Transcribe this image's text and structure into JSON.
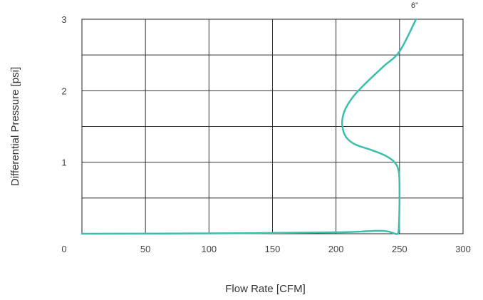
{
  "chart_data": {
    "type": "line",
    "xlabel": "Flow Rate [CFM]",
    "ylabel": "Differential Pressure [psi]",
    "xlim": [
      0,
      300
    ],
    "ylim": [
      0,
      3
    ],
    "x_ticks": [
      0,
      50,
      100,
      150,
      200,
      250,
      300
    ],
    "x_tick_labels": [
      "0",
      "50",
      "100",
      "150",
      "200",
      "250",
      "300"
    ],
    "y_ticks": [
      1,
      2,
      3
    ],
    "y_tick_labels": [
      "1",
      "2",
      "3"
    ],
    "grid": true,
    "series": [
      {
        "name": "6\"",
        "color": "#3bbfad",
        "x": [
          0,
          100,
          200,
          230,
          240,
          245,
          248.5,
          249.5,
          250,
          249.8,
          249,
          248,
          245,
          238,
          228,
          215,
          208,
          205,
          205.5,
          209,
          216,
          226,
          238,
          250,
          263
        ],
        "y": [
          0,
          0.005,
          0.02,
          0.04,
          0.035,
          0.01,
          0,
          0.1,
          0.5,
          0.8,
          0.9,
          0.95,
          1.02,
          1.1,
          1.17,
          1.25,
          1.35,
          1.5,
          1.65,
          1.8,
          1.97,
          2.15,
          2.35,
          2.55,
          3.0
        ]
      }
    ]
  }
}
